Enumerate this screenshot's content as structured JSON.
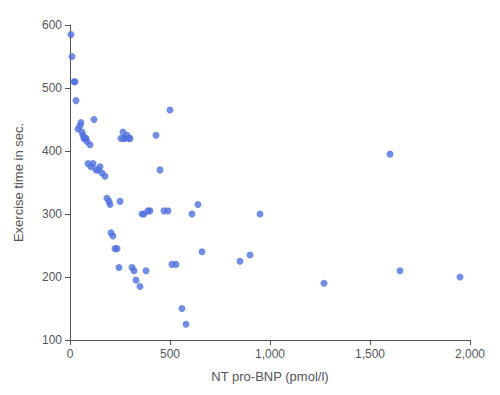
{
  "chart_data": {
    "type": "scatter",
    "x": [
      5,
      10,
      20,
      25,
      30,
      40,
      50,
      55,
      60,
      65,
      70,
      75,
      80,
      85,
      90,
      100,
      105,
      115,
      120,
      130,
      140,
      150,
      160,
      175,
      185,
      195,
      200,
      205,
      215,
      225,
      235,
      245,
      250,
      255,
      265,
      270,
      275,
      285,
      295,
      300,
      310,
      320,
      330,
      350,
      360,
      370,
      380,
      390,
      400,
      430,
      450,
      470,
      490,
      500,
      510,
      530,
      560,
      580,
      610,
      640,
      660,
      850,
      900,
      950,
      1270,
      1600,
      1650,
      1950
    ],
    "values": [
      585,
      550,
      510,
      510,
      480,
      435,
      440,
      445,
      430,
      425,
      420,
      420,
      420,
      415,
      380,
      410,
      375,
      380,
      450,
      370,
      370,
      375,
      365,
      360,
      325,
      320,
      315,
      270,
      265,
      245,
      245,
      215,
      320,
      420,
      430,
      420,
      420,
      425,
      420,
      420,
      215,
      210,
      195,
      185,
      300,
      300,
      210,
      305,
      305,
      425,
      370,
      305,
      305,
      465,
      220,
      220,
      150,
      125,
      300,
      315,
      240,
      225,
      235,
      300,
      190,
      395,
      210,
      200
    ],
    "xlabel": "NT pro-BNP (pmol/l)",
    "ylabel": "Exercise time in sec.",
    "xlim": [
      0,
      2000
    ],
    "ylim": [
      100,
      600
    ],
    "xticks": [
      0,
      500,
      1000,
      1500,
      2000
    ],
    "yticks": [
      100,
      200,
      300,
      400,
      500,
      600
    ],
    "grid": false
  }
}
